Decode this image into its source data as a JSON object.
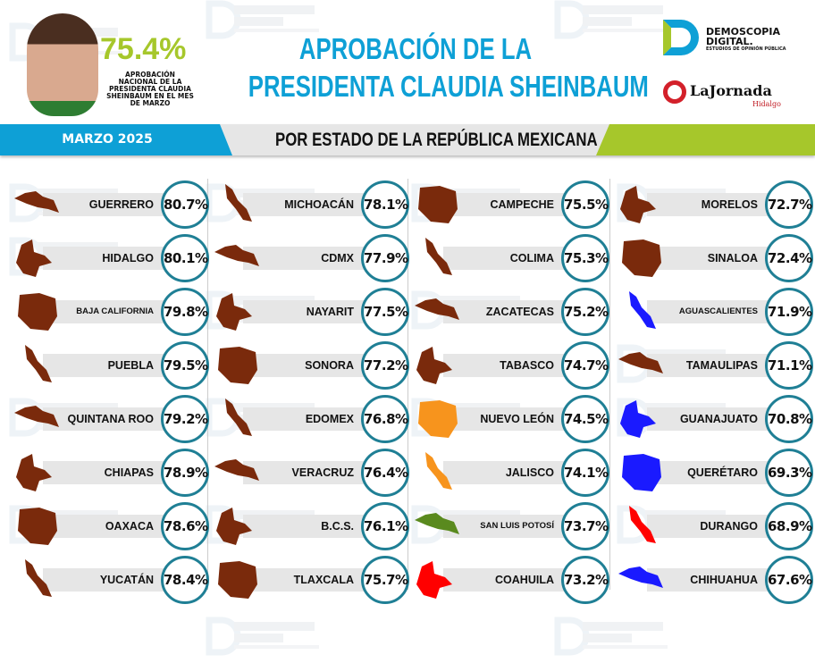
{
  "header": {
    "national_value": "75.4%",
    "national_label": "APROBACIÓN NACIONAL DE LA PRESIDENTA CLAUDIA SHEINBAUM EN EL MES DE MARZO",
    "title_line1": "APROBACIÓN DE LA",
    "title_line2": "PRESIDENTA CLAUDIA SHEINBAUM",
    "month": "MARZO 2025",
    "subtitle": "POR ESTADO DE LA REPÚBLICA MEXICANA"
  },
  "logos": {
    "demoscopia": {
      "line1": "DEMOSCOPIA",
      "line2": "DIGITAL.",
      "tagline": "ESTUDIOS DE OPINIÓN PÚBLICA"
    },
    "jornada": {
      "name": "LaJornada",
      "region": "Hidalgo"
    }
  },
  "watermark": {
    "line1": "DEMOSCOPIA",
    "line2": "DIGITAL",
    "tagline": "ESTUDIOS DE OPINIÓN PÚBLICA"
  },
  "colors": {
    "accent_blue": "#0ea0d6",
    "accent_green": "#a6c72b",
    "circle": "#1f7f95",
    "brown": "#7a2a0c",
    "orange": "#f7941d",
    "green": "#5a8a1e",
    "red": "#ff0000",
    "blue": "#1a1aff"
  },
  "columns": [
    [
      {
        "state": "GUERRERO",
        "value": "80.7%",
        "color": "brown"
      },
      {
        "state": "HIDALGO",
        "value": "80.1%",
        "color": "brown"
      },
      {
        "state": "BAJA CALIFORNIA",
        "value": "79.8%",
        "color": "brown"
      },
      {
        "state": "PUEBLA",
        "value": "79.5%",
        "color": "brown"
      },
      {
        "state": "QUINTANA ROO",
        "value": "79.2%",
        "color": "brown"
      },
      {
        "state": "CHIAPAS",
        "value": "78.9%",
        "color": "brown"
      },
      {
        "state": "OAXACA",
        "value": "78.6%",
        "color": "brown"
      },
      {
        "state": "YUCATÁN",
        "value": "78.4%",
        "color": "brown"
      }
    ],
    [
      {
        "state": "MICHOACÁN",
        "value": "78.1%",
        "color": "brown"
      },
      {
        "state": "CDMX",
        "value": "77.9%",
        "color": "brown"
      },
      {
        "state": "NAYARIT",
        "value": "77.5%",
        "color": "brown"
      },
      {
        "state": "SONORA",
        "value": "77.2%",
        "color": "brown"
      },
      {
        "state": "EDOMEX",
        "value": "76.8%",
        "color": "brown"
      },
      {
        "state": "VERACRUZ",
        "value": "76.4%",
        "color": "brown"
      },
      {
        "state": "B.C.S.",
        "value": "76.1%",
        "color": "brown"
      },
      {
        "state": "TLAXCALA",
        "value": "75.7%",
        "color": "brown"
      }
    ],
    [
      {
        "state": "CAMPECHE",
        "value": "75.5%",
        "color": "brown"
      },
      {
        "state": "COLIMA",
        "value": "75.3%",
        "color": "brown"
      },
      {
        "state": "ZACATECAS",
        "value": "75.2%",
        "color": "brown"
      },
      {
        "state": "TABASCO",
        "value": "74.7%",
        "color": "brown"
      },
      {
        "state": "NUEVO LEÓN",
        "value": "74.5%",
        "color": "orange"
      },
      {
        "state": "JALISCO",
        "value": "74.1%",
        "color": "orange"
      },
      {
        "state": "SAN LUIS POTOSÍ",
        "value": "73.7%",
        "color": "green"
      },
      {
        "state": "COAHUILA",
        "value": "73.2%",
        "color": "red"
      }
    ],
    [
      {
        "state": "MORELOS",
        "value": "72.7%",
        "color": "brown"
      },
      {
        "state": "SINALOA",
        "value": "72.4%",
        "color": "brown"
      },
      {
        "state": "AGUASCALIENTES",
        "value": "71.9%",
        "color": "blue"
      },
      {
        "state": "TAMAULIPAS",
        "value": "71.1%",
        "color": "brown"
      },
      {
        "state": "GUANAJUATO",
        "value": "70.8%",
        "color": "blue"
      },
      {
        "state": "QUERÉTARO",
        "value": "69.3%",
        "color": "blue"
      },
      {
        "state": "DURANGO",
        "value": "68.9%",
        "color": "red"
      },
      {
        "state": "CHIHUAHUA",
        "value": "67.6%",
        "color": "blue"
      }
    ]
  ]
}
